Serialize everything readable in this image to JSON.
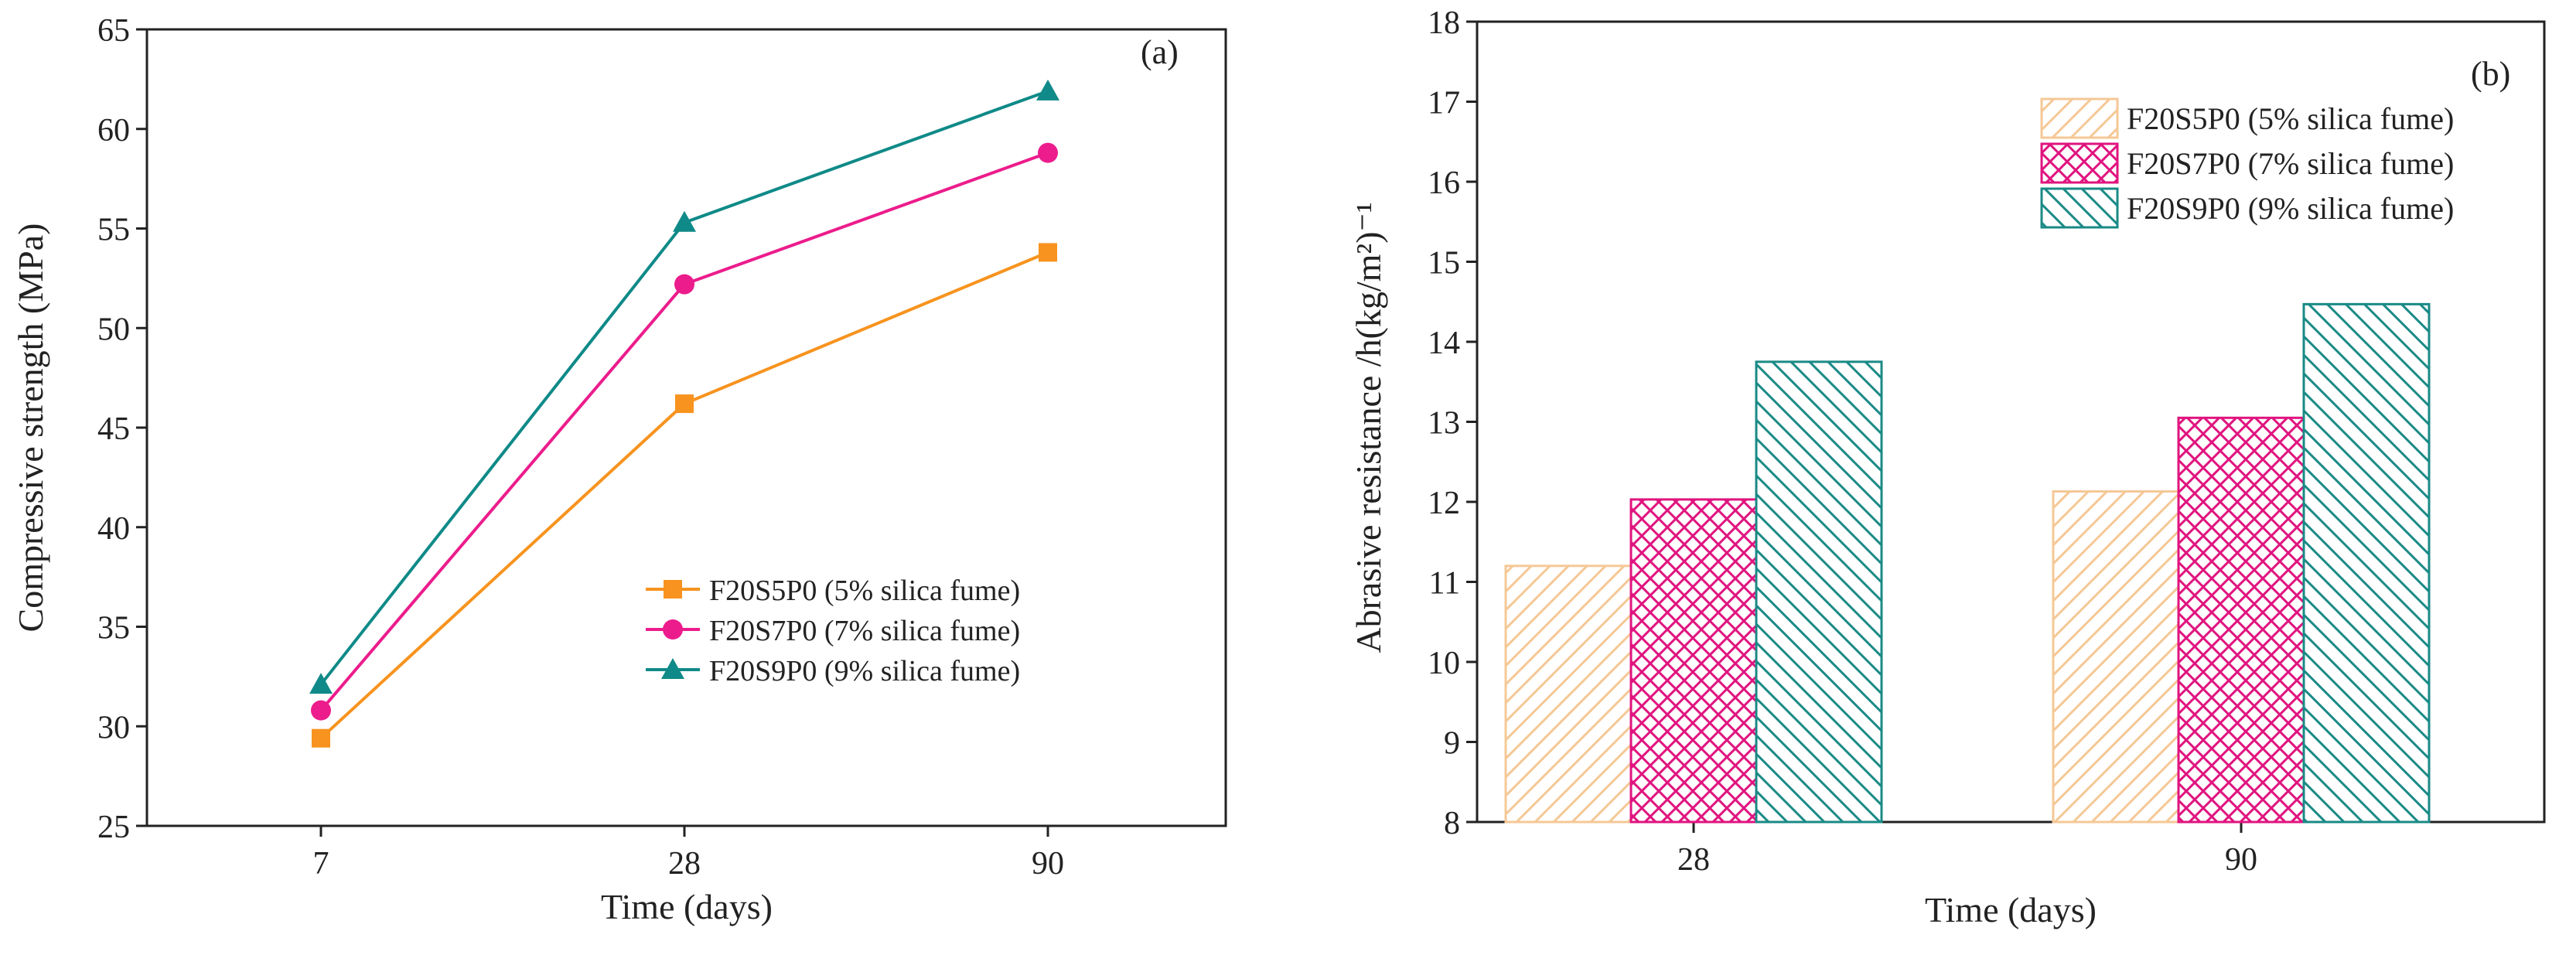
{
  "chart_data": [
    {
      "type": "line",
      "panel_label": "(a)",
      "xlabel": "Time (days)",
      "ylabel": "Compressive strength (MPa)",
      "categories": [
        "7",
        "28",
        "90"
      ],
      "ylim": [
        25,
        65
      ],
      "yticks": [
        25,
        30,
        35,
        40,
        45,
        50,
        55,
        60,
        65
      ],
      "grid": false,
      "legend_position": "bottom-right",
      "series": [
        {
          "name": "F20S5P0 (5% silica fume)",
          "values": [
            29.4,
            46.2,
            53.8
          ],
          "color": "#f7931e",
          "marker": "square"
        },
        {
          "name": "F20S7P0 (7% silica fume)",
          "values": [
            30.8,
            52.2,
            58.8
          ],
          "color": "#ec1c8c",
          "marker": "circle"
        },
        {
          "name": "F20S9P0 (9% silica fume)",
          "values": [
            32.1,
            55.3,
            61.9
          ],
          "color": "#0f8a88",
          "marker": "triangle"
        }
      ]
    },
    {
      "type": "bar",
      "panel_label": "(b)",
      "xlabel": "Time (days)",
      "ylabel": "Abrasive resistance /h(kg/m²)⁻¹",
      "categories": [
        "28",
        "90"
      ],
      "ylim": [
        8,
        18
      ],
      "yticks": [
        8,
        9,
        10,
        11,
        12,
        13,
        14,
        15,
        16,
        17,
        18
      ],
      "grid": false,
      "legend_position": "top-right",
      "series": [
        {
          "name": "F20S5P0 (5% silica fume)",
          "values": [
            11.2,
            12.13
          ],
          "color": "#f5c896",
          "pattern": "diagonal"
        },
        {
          "name": "F20S7P0 (7% silica fume)",
          "values": [
            12.03,
            13.05
          ],
          "color": "#e0147f",
          "pattern": "crosshatch"
        },
        {
          "name": "F20S9P0 (9% silica fume)",
          "values": [
            13.75,
            14.47
          ],
          "color": "#1a8a86",
          "pattern": "backdiagonal"
        }
      ]
    }
  ]
}
